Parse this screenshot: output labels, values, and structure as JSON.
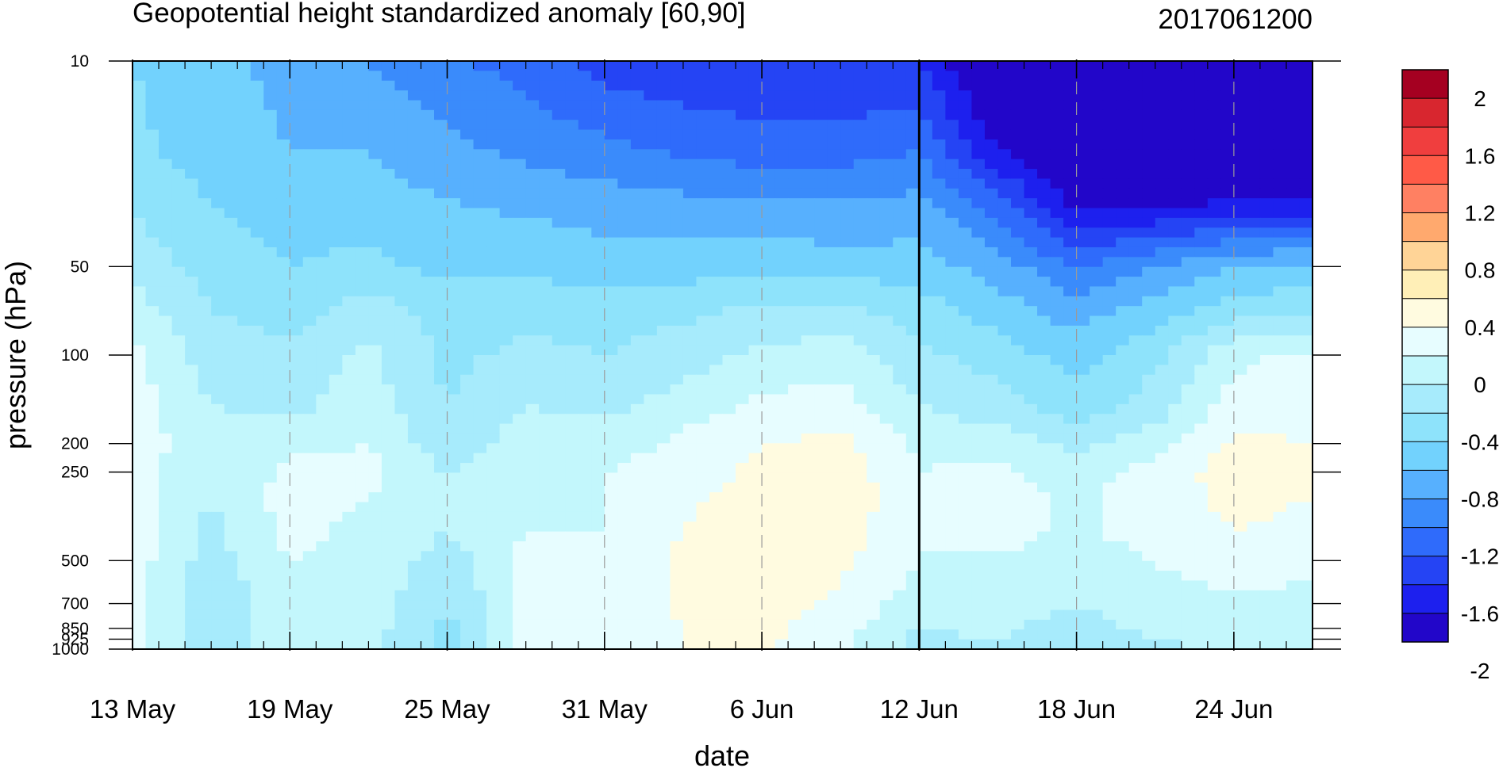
{
  "chart_data": {
    "type": "heatmap",
    "title": "Geopotential height standardized anomaly [60,90]",
    "run_label": "2017061200",
    "xlabel": "date",
    "ylabel": "pressure (hPa)",
    "x_ticks": [
      {
        "day": 0,
        "label": "13 May"
      },
      {
        "day": 6,
        "label": "19 May"
      },
      {
        "day": 12,
        "label": "25 May"
      },
      {
        "day": 18,
        "label": "31 May"
      },
      {
        "day": 24,
        "label": "6 Jun"
      },
      {
        "day": 30,
        "label": "12 Jun"
      },
      {
        "day": 36,
        "label": "18 Jun"
      },
      {
        "day": 42,
        "label": "24 Jun"
      }
    ],
    "x_range_days": [
      0,
      45
    ],
    "y_ticks": [
      {
        "p": 10,
        "label": "10"
      },
      {
        "p": 50,
        "label": "50"
      },
      {
        "p": 100,
        "label": "100"
      },
      {
        "p": 200,
        "label": "200"
      },
      {
        "p": 250,
        "label": "250"
      },
      {
        "p": 500,
        "label": "500"
      },
      {
        "p": 700,
        "label": "700"
      },
      {
        "p": 850,
        "label": "850"
      },
      {
        "p": 925,
        "label": "925"
      },
      {
        "p": 1000,
        "label": "1000"
      }
    ],
    "y_range_hpa": [
      1000,
      10
    ],
    "forecast_start_day": 30,
    "legend": {
      "labels": [
        "2",
        "1.6",
        "1.2",
        "0.8",
        "0.4",
        "0",
        "-0.4",
        "-0.8",
        "-1.2",
        "-1.6",
        "-2"
      ],
      "colors": [
        "#a50021",
        "#d8262f",
        "#f03e3e",
        "#ff5a47",
        "#ff8062",
        "#ffa96e",
        "#ffd497",
        "#ffefb7",
        "#fffbe0",
        "#e7fdff",
        "#c3f7fc",
        "#a7ebfc",
        "#8ee3fb",
        "#72d2fd",
        "#57b0fe",
        "#3a8bfb",
        "#2f6bfb",
        "#2544f4",
        "#1d20ee",
        "#2206c9"
      ]
    },
    "fields": {
      "pressure_levels_hpa": [
        10,
        20,
        30,
        50,
        70,
        100,
        150,
        200,
        250,
        300,
        400,
        500,
        700,
        850,
        925,
        1000
      ],
      "days": [
        0,
        3,
        6,
        9,
        12,
        15,
        18,
        21,
        24,
        27,
        30,
        33,
        36,
        39,
        42,
        45
      ],
      "anomaly_rows_by_level": [
        [
          -0.6,
          -0.75,
          -0.85,
          -1.0,
          -1.15,
          -1.3,
          -1.5,
          -1.55,
          -1.6,
          -1.6,
          -1.6,
          -2.2,
          -2.2,
          -2.2,
          -2.2,
          -2.2
        ],
        [
          -0.55,
          -0.7,
          -0.8,
          -0.8,
          -0.95,
          -1.05,
          -1.15,
          -1.25,
          -1.3,
          -1.3,
          -1.2,
          -1.8,
          -2.1,
          -2.1,
          -2.1,
          -2.1
        ],
        [
          -0.45,
          -0.6,
          -0.7,
          -0.7,
          -0.8,
          -0.85,
          -0.9,
          -0.95,
          -1.0,
          -1.0,
          -0.95,
          -1.3,
          -1.9,
          -1.9,
          -1.8,
          -1.8
        ],
        [
          -0.25,
          -0.5,
          -0.6,
          -0.55,
          -0.65,
          -0.65,
          -0.7,
          -0.7,
          -0.65,
          -0.7,
          -0.7,
          -0.9,
          -1.2,
          -1.0,
          -0.8,
          -0.75
        ],
        [
          -0.1,
          -0.4,
          -0.5,
          -0.3,
          -0.5,
          -0.45,
          -0.5,
          -0.45,
          -0.35,
          -0.35,
          -0.5,
          -0.7,
          -0.9,
          -0.7,
          -0.5,
          -0.45
        ],
        [
          0.05,
          -0.3,
          -0.35,
          -0.15,
          -0.45,
          -0.35,
          -0.4,
          -0.3,
          -0.15,
          -0.1,
          -0.35,
          -0.5,
          -0.7,
          -0.45,
          -0.05,
          0.05
        ],
        [
          0.1,
          -0.2,
          -0.25,
          -0.1,
          -0.4,
          -0.2,
          -0.25,
          -0.1,
          0.05,
          0.1,
          -0.2,
          -0.3,
          -0.5,
          -0.3,
          0.1,
          0.1
        ],
        [
          0.1,
          -0.1,
          -0.05,
          0.0,
          -0.35,
          -0.1,
          -0.1,
          0.05,
          0.2,
          0.25,
          -0.05,
          -0.1,
          -0.25,
          -0.1,
          0.25,
          0.2
        ],
        [
          0.1,
          -0.2,
          0.05,
          0.05,
          -0.2,
          -0.05,
          0.0,
          0.1,
          0.25,
          0.3,
          0.0,
          0.05,
          -0.1,
          0.1,
          0.3,
          0.25
        ],
        [
          0.1,
          -0.2,
          0.1,
          0.0,
          -0.15,
          0.0,
          0.0,
          0.15,
          0.3,
          0.35,
          0.05,
          0.1,
          -0.05,
          0.1,
          0.25,
          0.2
        ],
        [
          0.1,
          -0.25,
          0.05,
          -0.05,
          -0.2,
          0.0,
          0.0,
          0.2,
          0.35,
          0.3,
          0.0,
          0.1,
          -0.05,
          0.1,
          0.2,
          0.15
        ],
        [
          0.1,
          -0.3,
          0.0,
          -0.05,
          -0.3,
          0.05,
          0.0,
          0.25,
          0.35,
          0.25,
          0.0,
          -0.05,
          -0.1,
          0.0,
          0.1,
          0.05
        ],
        [
          0.05,
          -0.35,
          -0.05,
          -0.1,
          -0.4,
          0.05,
          0.05,
          0.25,
          0.3,
          0.15,
          -0.1,
          -0.1,
          -0.2,
          -0.05,
          -0.05,
          -0.05
        ],
        [
          0.05,
          -0.35,
          -0.1,
          -0.1,
          -0.45,
          0.05,
          0.1,
          0.2,
          0.25,
          0.1,
          -0.2,
          -0.15,
          -0.3,
          -0.15,
          -0.1,
          -0.1
        ],
        [
          0.1,
          -0.3,
          -0.1,
          -0.15,
          -0.45,
          0.05,
          0.1,
          0.2,
          0.25,
          0.05,
          -0.25,
          -0.2,
          -0.35,
          -0.2,
          -0.15,
          -0.15
        ],
        [
          0.1,
          -0.3,
          -0.1,
          -0.15,
          -0.45,
          0.05,
          0.1,
          0.2,
          0.2,
          0.05,
          -0.3,
          -0.2,
          -0.4,
          -0.25,
          -0.15,
          -0.15
        ]
      ]
    }
  }
}
